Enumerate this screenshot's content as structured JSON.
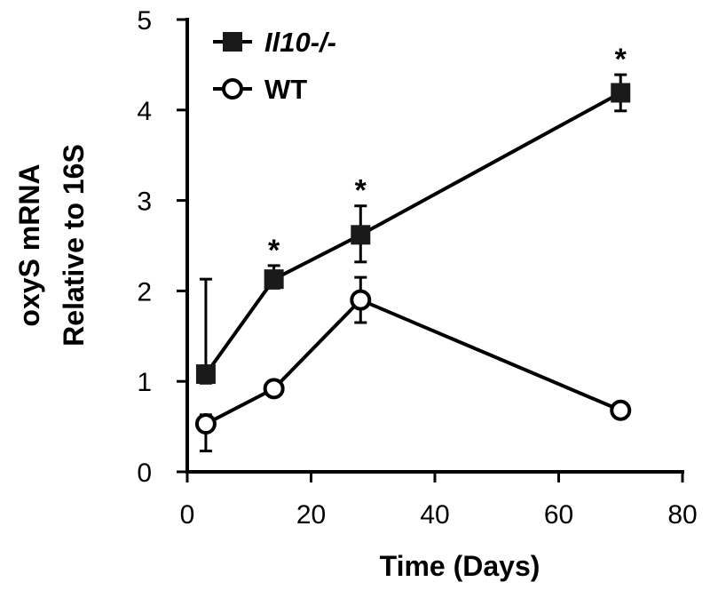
{
  "chart_data": {
    "type": "line",
    "xlabel": "Time (Days)",
    "ylabel_lines": [
      "oxyS mRNA",
      "Relative to 16S"
    ],
    "xlim": [
      0,
      80
    ],
    "ylim": [
      0,
      5
    ],
    "xticks": [
      0,
      20,
      40,
      60,
      80
    ],
    "yticks": [
      0,
      1,
      2,
      3,
      4,
      5
    ],
    "grid": false,
    "legend_position": "top-left",
    "series": [
      {
        "name": "Il10-/-",
        "marker": "filled-square",
        "x": [
          3,
          14,
          28,
          70
        ],
        "y": [
          1.08,
          2.13,
          2.62,
          4.19
        ],
        "err_up": [
          1.05,
          0.15,
          0.32,
          0.2
        ],
        "err_down": [
          0.1,
          0.1,
          0.3,
          0.2
        ]
      },
      {
        "name": "WT",
        "marker": "open-circle",
        "x": [
          3,
          14,
          28,
          70
        ],
        "y": [
          0.53,
          0.92,
          1.9,
          0.68
        ],
        "err_up": [
          0.1,
          0.05,
          0.25,
          0.05
        ],
        "err_down": [
          0.3,
          0.05,
          0.25,
          0.05
        ]
      }
    ],
    "annotations": [
      {
        "text": "*",
        "x": 14
      },
      {
        "text": "*",
        "x": 28
      },
      {
        "text": "*",
        "x": 70
      }
    ]
  }
}
